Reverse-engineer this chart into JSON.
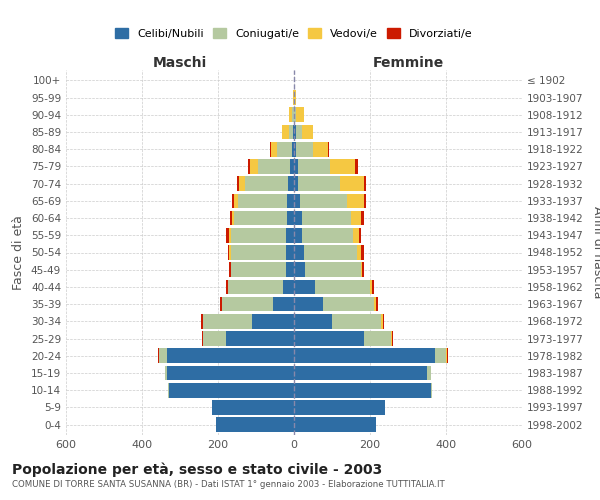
{
  "age_groups": [
    "0-4",
    "5-9",
    "10-14",
    "15-19",
    "20-24",
    "25-29",
    "30-34",
    "35-39",
    "40-44",
    "45-49",
    "50-54",
    "55-59",
    "60-64",
    "65-69",
    "70-74",
    "75-79",
    "80-84",
    "85-89",
    "90-94",
    "95-99",
    "100+"
  ],
  "birth_years": [
    "1998-2002",
    "1993-1997",
    "1988-1992",
    "1983-1987",
    "1978-1982",
    "1973-1977",
    "1968-1972",
    "1963-1967",
    "1958-1962",
    "1953-1957",
    "1948-1952",
    "1943-1947",
    "1938-1942",
    "1933-1937",
    "1928-1932",
    "1923-1927",
    "1918-1922",
    "1913-1917",
    "1908-1912",
    "1903-1907",
    "≤ 1902"
  ],
  "male": {
    "celibi": [
      205,
      215,
      330,
      335,
      335,
      180,
      110,
      55,
      30,
      20,
      20,
      20,
      18,
      18,
      15,
      10,
      5,
      3,
      0,
      0,
      0
    ],
    "coniugati": [
      0,
      0,
      2,
      5,
      20,
      60,
      130,
      135,
      145,
      145,
      145,
      145,
      140,
      130,
      115,
      85,
      40,
      10,
      5,
      0,
      0
    ],
    "vedovi": [
      0,
      0,
      0,
      0,
      0,
      0,
      0,
      0,
      0,
      2,
      5,
      5,
      5,
      10,
      15,
      20,
      15,
      18,
      8,
      2,
      0
    ],
    "divorziati": [
      0,
      0,
      0,
      0,
      2,
      3,
      5,
      5,
      5,
      5,
      3,
      10,
      5,
      5,
      5,
      5,
      3,
      0,
      0,
      0,
      0
    ]
  },
  "female": {
    "nubili": [
      215,
      240,
      360,
      350,
      370,
      185,
      100,
      75,
      55,
      30,
      25,
      20,
      20,
      15,
      10,
      10,
      5,
      5,
      0,
      0,
      0
    ],
    "coniugate": [
      0,
      0,
      2,
      10,
      30,
      70,
      130,
      135,
      145,
      145,
      140,
      135,
      130,
      125,
      110,
      85,
      45,
      15,
      5,
      0,
      0
    ],
    "vedove": [
      0,
      0,
      0,
      0,
      2,
      3,
      3,
      5,
      5,
      5,
      10,
      15,
      25,
      45,
      65,
      65,
      40,
      30,
      20,
      5,
      0
    ],
    "divorziate": [
      0,
      0,
      0,
      0,
      2,
      2,
      3,
      5,
      5,
      5,
      10,
      5,
      10,
      5,
      5,
      8,
      2,
      0,
      0,
      0,
      0
    ]
  },
  "colors": {
    "celibi": "#2e6da4",
    "coniugati": "#b5c9a0",
    "vedovi": "#f5c842",
    "divorziati": "#cc1a00"
  },
  "legend_labels": [
    "Celibi/Nubili",
    "Coniugati/e",
    "Vedovi/e",
    "Divorziati/e"
  ],
  "title": "Popolazione per età, sesso e stato civile - 2003",
  "subtitle": "COMUNE DI TORRE SANTA SUSANNA (BR) - Dati ISTAT 1° gennaio 2003 - Elaborazione TUTTITALIA.IT",
  "xlabel_left": "Maschi",
  "xlabel_right": "Femmine",
  "ylabel_left": "Fasce di età",
  "ylabel_right": "Anni di nascita",
  "xlim": 600
}
